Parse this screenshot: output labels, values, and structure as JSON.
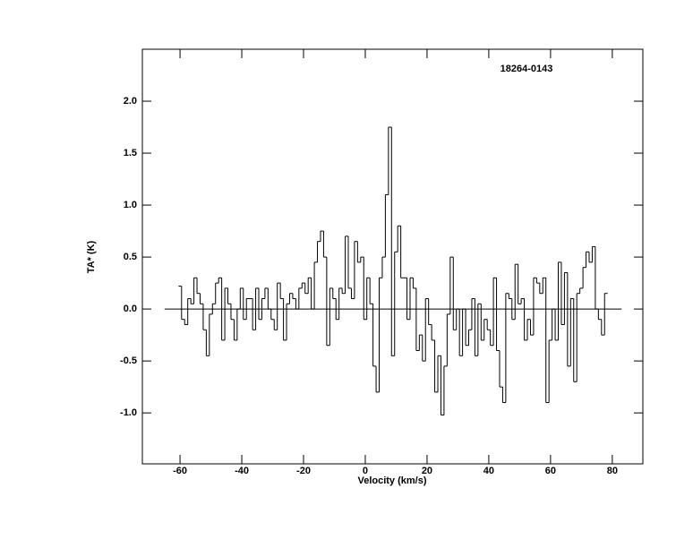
{
  "chart_data": {
    "type": "step",
    "annotation": "18264-0143",
    "xlabel": "Velocity (km/s)",
    "ylabel": "TA* (K)",
    "color": "#000000",
    "xlim": [
      -72.2,
      89.9
    ],
    "ylim": [
      -1.49,
      2.5
    ],
    "xticks": [
      -60,
      -40,
      -20,
      0,
      20,
      40,
      60,
      80
    ],
    "yticks": [
      {
        "value": -1,
        "label": "-1.0"
      },
      -0.5,
      {
        "value": 0,
        "label": "0.0"
      },
      0.5,
      {
        "value": 1,
        "label": "1.0"
      },
      1.5,
      {
        "value": 2,
        "label": "2.0"
      }
    ],
    "x": [
      -60,
      -59,
      -58,
      -57,
      -56,
      -55,
      -54,
      -53,
      -52,
      -51,
      -50,
      -49,
      -48,
      -47,
      -46,
      -45,
      -44,
      -43,
      -42,
      -41,
      -40,
      -39,
      -38,
      -37,
      -36,
      -35,
      -34,
      -33,
      -32,
      -31,
      -30,
      -29,
      -28,
      -27,
      -26,
      -25,
      -24,
      -23,
      -22,
      -21,
      -20,
      -19,
      -18,
      -17,
      -16,
      -15,
      -14,
      -13,
      -12,
      -11,
      -10,
      -9,
      -8,
      -7,
      -6,
      -5,
      -4,
      -3,
      -2,
      -1,
      0,
      1,
      2,
      3,
      4,
      5,
      6,
      7,
      8,
      9,
      10,
      11,
      12,
      13,
      14,
      15,
      16,
      17,
      18,
      19,
      20,
      21,
      22,
      23,
      24,
      25,
      26,
      27,
      28,
      29,
      30,
      31,
      32,
      33,
      34,
      35,
      36,
      37,
      38,
      39,
      40,
      41,
      42,
      43,
      44,
      45,
      46,
      47,
      48,
      49,
      50,
      51,
      52,
      53,
      54,
      55,
      56,
      57,
      58,
      59,
      60,
      61,
      62,
      63,
      64,
      65,
      66,
      67,
      68,
      69,
      70,
      71,
      72,
      73,
      74,
      75,
      76,
      77,
      78
    ],
    "values": [
      0.22,
      -0.1,
      -0.15,
      0.1,
      0.05,
      0.3,
      0.15,
      0.05,
      -0.2,
      -0.45,
      -0.05,
      0.05,
      0.25,
      0.3,
      -0.3,
      0.2,
      0.05,
      -0.1,
      -0.3,
      0.0,
      0.2,
      -0.1,
      0.1,
      0.1,
      -0.2,
      0.2,
      -0.1,
      0.1,
      0.2,
      0.0,
      -0.1,
      -0.2,
      0.25,
      0.1,
      -0.3,
      0.05,
      0.15,
      0.1,
      0.0,
      0.2,
      0.25,
      0.15,
      0.3,
      0.0,
      0.45,
      0.65,
      0.75,
      0.5,
      -0.35,
      0.2,
      0.1,
      -0.1,
      0.2,
      0.15,
      0.7,
      0.2,
      0.1,
      0.65,
      0.45,
      0.5,
      -0.1,
      0.3,
      0.05,
      -0.55,
      -0.8,
      0.3,
      0.5,
      1.1,
      1.75,
      -0.45,
      0.55,
      0.8,
      0.3,
      0.3,
      -0.1,
      0.3,
      0.2,
      -0.4,
      -0.25,
      -0.5,
      0.1,
      -0.15,
      -0.3,
      -0.8,
      -0.45,
      -1.02,
      -0.55,
      -0.05,
      0.5,
      -0.2,
      0.0,
      -0.45,
      0.0,
      -0.35,
      -0.2,
      0.1,
      -0.45,
      0.05,
      -0.3,
      -0.1,
      -0.2,
      -0.35,
      0.3,
      -0.4,
      -0.75,
      -0.9,
      0.15,
      0.1,
      -0.1,
      0.43,
      0.05,
      0.1,
      -0.3,
      -0.1,
      -0.25,
      0.3,
      0.25,
      0.15,
      0.3,
      -0.9,
      -0.3,
      0.0,
      -0.3,
      0.45,
      -0.15,
      0.35,
      -0.55,
      0.1,
      -0.7,
      0.15,
      0.2,
      0.4,
      0.55,
      0.45,
      0.6,
      0.0,
      -0.1,
      -0.25,
      0.15
    ]
  }
}
